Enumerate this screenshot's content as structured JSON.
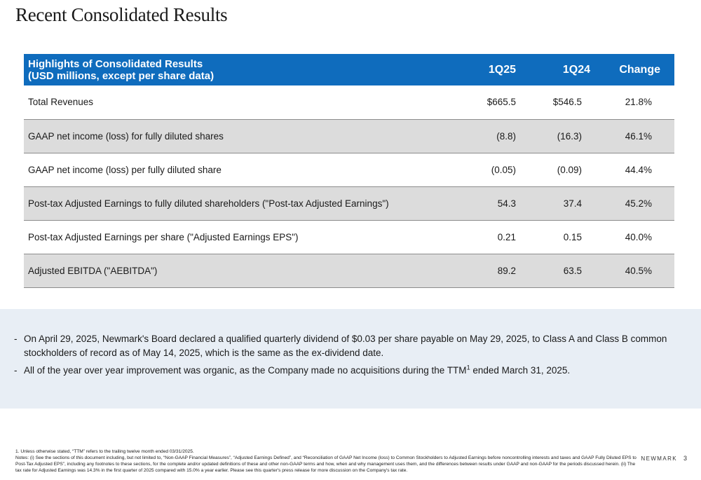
{
  "title": "Recent Consolidated Results",
  "table": {
    "header": {
      "label_line1": "Highlights of Consolidated Results",
      "label_line2": "(USD millions, except per share data)",
      "col1": "1Q25",
      "col2": "1Q24",
      "col3": "Change"
    },
    "rows": [
      {
        "label": "Total Revenues",
        "q125": "$665.5",
        "q124": "$546.5",
        "change": "21.8%"
      },
      {
        "label": "GAAP net income (loss) for fully diluted shares",
        "q125": "(8.8)",
        "q124": "(16.3)",
        "change": "46.1%"
      },
      {
        "label": "GAAP net income (loss) per fully diluted share",
        "q125": "(0.05)",
        "q124": "(0.09)",
        "change": "44.4%"
      },
      {
        "label": "Post-tax Adjusted Earnings to fully diluted shareholders (\"Post-tax Adjusted Earnings\")",
        "q125": "54.3",
        "q124": "37.4",
        "change": "45.2%"
      },
      {
        "label": "Post-tax Adjusted Earnings per share (\"Adjusted Earnings EPS\")",
        "q125": "0.21",
        "q124": "0.15",
        "change": "40.0%"
      },
      {
        "label": "Adjusted EBITDA (\"AEBITDA\")",
        "q125": "89.2",
        "q124": "63.5",
        "change": "40.5%"
      }
    ]
  },
  "bullets": {
    "dash": "-",
    "item1": "On April 29, 2025, Newmark's Board declared a qualified quarterly dividend of $0.03 per share payable on May 29, 2025, to Class A and Class B common stockholders of record as of May 14, 2025, which is the same as the ex-dividend date.",
    "item2_pre": "All of the year over year improvement was organic, as the Company made no acquisitions during the TTM",
    "item2_sup": "1",
    "item2_post": " ended March 31, 2025."
  },
  "footnotes": {
    "note1": "1. Unless otherwise stated, “TTM” refers to the trailing twelve month ended 03/31/2025.",
    "notes": "Notes: (i) See the sections of this document including, but not limited to, “Non-GAAP Financial Measures”, “Adjusted Earnings Defined”, and “Reconciliation of GAAP Net Income (loss) to Common Stockholders to Adjusted Earnings before noncontrolling interests and taxes and GAAP Fully Diluted EPS to Post-Tax Adjusted EPS”, including any footnotes to these sections, for the complete and/or updated definitions of these and other non-GAAP terms and how, when and why management uses them, and the differences between results under GAAP and non-GAAP for the periods discussed herein. (ii) The tax rate for Adjusted Earnings was 14.3% in the first quarter of 2025 compared with 15.0% a year earlier. Please see this quarter's press release for more discussion on the Company's tax rate."
  },
  "brand": "NEWMARK",
  "page_number": "3",
  "colors": {
    "header_blue": "#0f6cbd",
    "row_shade": "#dcdcdc",
    "notes_bg": "#e8eef5"
  }
}
